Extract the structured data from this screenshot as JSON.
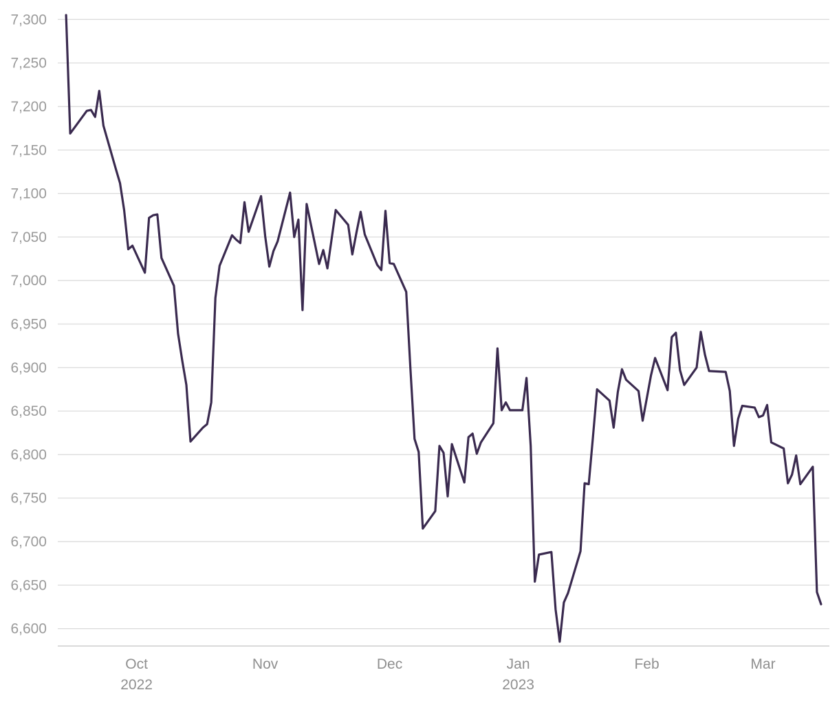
{
  "chart_data": {
    "type": "line",
    "title": "",
    "xlabel": "",
    "ylabel": "",
    "grid": true,
    "legend": "none",
    "line_color": "#3a2a4f",
    "ylim": [
      6580,
      7305
    ],
    "xlim": [
      "2022-09-12",
      "2023-03-17"
    ],
    "y_ticks": [
      {
        "value": 6600,
        "label": "6,600"
      },
      {
        "value": 6650,
        "label": "6,650"
      },
      {
        "value": 6700,
        "label": "6,700"
      },
      {
        "value": 6750,
        "label": "6,750"
      },
      {
        "value": 6800,
        "label": "6,800"
      },
      {
        "value": 6850,
        "label": "6,850"
      },
      {
        "value": 6900,
        "label": "6,900"
      },
      {
        "value": 6950,
        "label": "6,950"
      },
      {
        "value": 7000,
        "label": "7,000"
      },
      {
        "value": 7050,
        "label": "7,050"
      },
      {
        "value": 7100,
        "label": "7,100"
      },
      {
        "value": 7150,
        "label": "7,150"
      },
      {
        "value": 7200,
        "label": "7,200"
      },
      {
        "value": 7250,
        "label": "7,250"
      },
      {
        "value": 7300,
        "label": "7,300"
      }
    ],
    "x_ticks": [
      {
        "date": "2022-10-01",
        "label": "Oct",
        "year": "2022"
      },
      {
        "date": "2022-11-01",
        "label": "Nov",
        "year": ""
      },
      {
        "date": "2022-12-01",
        "label": "Dec",
        "year": ""
      },
      {
        "date": "2023-01-01",
        "label": "Jan",
        "year": "2023"
      },
      {
        "date": "2023-02-01",
        "label": "Feb",
        "year": ""
      },
      {
        "date": "2023-03-01",
        "label": "Mar",
        "year": ""
      }
    ],
    "series": [
      {
        "points": [
          [
            "2022-09-14",
            7305
          ],
          [
            "2022-09-15",
            7169
          ],
          [
            "2022-09-19",
            7195
          ],
          [
            "2022-09-20",
            7196
          ],
          [
            "2022-09-21",
            7188
          ],
          [
            "2022-09-22",
            7218
          ],
          [
            "2022-09-23",
            7178
          ],
          [
            "2022-09-26",
            7128
          ],
          [
            "2022-09-27",
            7112
          ],
          [
            "2022-09-28",
            7081
          ],
          [
            "2022-09-29",
            7036
          ],
          [
            "2022-09-30",
            7040
          ],
          [
            "2022-10-03",
            7009
          ],
          [
            "2022-10-04",
            7072
          ],
          [
            "2022-10-05",
            7075
          ],
          [
            "2022-10-06",
            7076
          ],
          [
            "2022-10-07",
            7026
          ],
          [
            "2022-10-10",
            6994
          ],
          [
            "2022-10-11",
            6939
          ],
          [
            "2022-10-12",
            6908
          ],
          [
            "2022-10-13",
            6880
          ],
          [
            "2022-10-14",
            6815
          ],
          [
            "2022-10-17",
            6831
          ],
          [
            "2022-10-18",
            6835
          ],
          [
            "2022-10-19",
            6860
          ],
          [
            "2022-10-20",
            6980
          ],
          [
            "2022-10-21",
            7017
          ],
          [
            "2022-10-24",
            7052
          ],
          [
            "2022-10-25",
            7047
          ],
          [
            "2022-10-26",
            7043
          ],
          [
            "2022-10-27",
            7090
          ],
          [
            "2022-10-28",
            7056
          ],
          [
            "2022-10-31",
            7097
          ],
          [
            "2022-11-01",
            7051
          ],
          [
            "2022-11-02",
            7016
          ],
          [
            "2022-11-03",
            7034
          ],
          [
            "2022-11-04",
            7045
          ],
          [
            "2022-11-07",
            7101
          ],
          [
            "2022-11-08",
            7050
          ],
          [
            "2022-11-09",
            7070
          ],
          [
            "2022-11-10",
            6966
          ],
          [
            "2022-11-11",
            7088
          ],
          [
            "2022-11-14",
            7019
          ],
          [
            "2022-11-15",
            7035
          ],
          [
            "2022-11-16",
            7014
          ],
          [
            "2022-11-17",
            7047
          ],
          [
            "2022-11-18",
            7081
          ],
          [
            "2022-11-21",
            7064
          ],
          [
            "2022-11-22",
            7030
          ],
          [
            "2022-11-23",
            7055
          ],
          [
            "2022-11-24",
            7079
          ],
          [
            "2022-11-25",
            7053
          ],
          [
            "2022-11-28",
            7018
          ],
          [
            "2022-11-29",
            7012
          ],
          [
            "2022-11-30",
            7080
          ],
          [
            "2022-12-01",
            7020
          ],
          [
            "2022-12-02",
            7019
          ],
          [
            "2022-12-05",
            6987
          ],
          [
            "2022-12-06",
            6900
          ],
          [
            "2022-12-07",
            6818
          ],
          [
            "2022-12-08",
            6803
          ],
          [
            "2022-12-09",
            6715
          ],
          [
            "2022-12-12",
            6735
          ],
          [
            "2022-12-13",
            6810
          ],
          [
            "2022-12-14",
            6802
          ],
          [
            "2022-12-15",
            6752
          ],
          [
            "2022-12-16",
            6812
          ],
          [
            "2022-12-19",
            6768
          ],
          [
            "2022-12-20",
            6820
          ],
          [
            "2022-12-21",
            6824
          ],
          [
            "2022-12-22",
            6801
          ],
          [
            "2022-12-23",
            6814
          ],
          [
            "2022-12-26",
            6836
          ],
          [
            "2022-12-27",
            6922
          ],
          [
            "2022-12-28",
            6851
          ],
          [
            "2022-12-29",
            6860
          ],
          [
            "2022-12-30",
            6851
          ],
          [
            "2023-01-02",
            6851
          ],
          [
            "2023-01-03",
            6888
          ],
          [
            "2023-01-04",
            6810
          ],
          [
            "2023-01-05",
            6654
          ],
          [
            "2023-01-06",
            6685
          ],
          [
            "2023-01-09",
            6688
          ],
          [
            "2023-01-10",
            6622
          ],
          [
            "2023-01-11",
            6585
          ],
          [
            "2023-01-12",
            6630
          ],
          [
            "2023-01-13",
            6641
          ],
          [
            "2023-01-16",
            6689
          ],
          [
            "2023-01-17",
            6767
          ],
          [
            "2023-01-18",
            6766
          ],
          [
            "2023-01-19",
            6820
          ],
          [
            "2023-01-20",
            6875
          ],
          [
            "2023-01-23",
            6862
          ],
          [
            "2023-01-24",
            6831
          ],
          [
            "2023-01-25",
            6872
          ],
          [
            "2023-01-26",
            6898
          ],
          [
            "2023-01-27",
            6886
          ],
          [
            "2023-01-30",
            6873
          ],
          [
            "2023-01-31",
            6839
          ],
          [
            "2023-02-01",
            6865
          ],
          [
            "2023-02-02",
            6891
          ],
          [
            "2023-02-03",
            6911
          ],
          [
            "2023-02-06",
            6874
          ],
          [
            "2023-02-07",
            6935
          ],
          [
            "2023-02-08",
            6940
          ],
          [
            "2023-02-09",
            6897
          ],
          [
            "2023-02-10",
            6880
          ],
          [
            "2023-02-13",
            6900
          ],
          [
            "2023-02-14",
            6941
          ],
          [
            "2023-02-15",
            6915
          ],
          [
            "2023-02-16",
            6896
          ],
          [
            "2023-02-20",
            6895
          ],
          [
            "2023-02-21",
            6873
          ],
          [
            "2023-02-22",
            6810
          ],
          [
            "2023-02-23",
            6841
          ],
          [
            "2023-02-24",
            6856
          ],
          [
            "2023-02-27",
            6854
          ],
          [
            "2023-02-28",
            6843
          ],
          [
            "2023-03-01",
            6845
          ],
          [
            "2023-03-02",
            6857
          ],
          [
            "2023-03-03",
            6814
          ],
          [
            "2023-03-06",
            6807
          ],
          [
            "2023-03-07",
            6767
          ],
          [
            "2023-03-08",
            6777
          ],
          [
            "2023-03-09",
            6799
          ],
          [
            "2023-03-10",
            6766
          ],
          [
            "2023-03-13",
            6786
          ],
          [
            "2023-03-14",
            6642
          ],
          [
            "2023-03-15",
            6628
          ]
        ]
      }
    ]
  }
}
